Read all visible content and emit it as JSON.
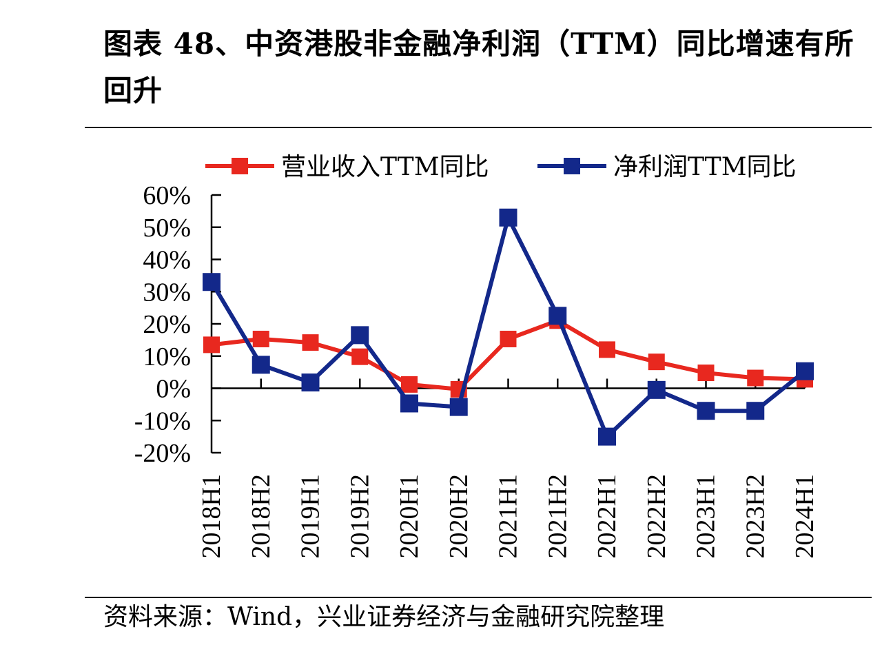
{
  "figure": {
    "title": "图表 48、中资港股非金融净利润（TTM）同比增速有所回升",
    "source": "资料来源：Wind，兴业证券经济与金融研究院整理"
  },
  "chart_data": {
    "type": "line",
    "categories": [
      "2018H1",
      "2018H2",
      "2019H1",
      "2019H2",
      "2020H1",
      "2020H2",
      "2021H1",
      "2021H2",
      "2022H1",
      "2022H2",
      "2023H1",
      "2023H2",
      "2024H1"
    ],
    "series": [
      {
        "name": "营业收入TTM同比",
        "color": "#e8281f",
        "values": [
          13.5,
          15.3,
          14.2,
          9.8,
          1.2,
          -0.3,
          15.3,
          21.0,
          12.0,
          8.2,
          4.8,
          3.2,
          2.8
        ]
      },
      {
        "name": "净利润TTM同比",
        "color": "#13288a",
        "values": [
          33.0,
          7.3,
          1.8,
          16.5,
          -4.7,
          -5.8,
          53.0,
          22.5,
          -15.0,
          -0.5,
          -7.0,
          -7.0,
          5.3
        ]
      }
    ],
    "ylim": [
      -20,
      60
    ],
    "yticks": [
      -20,
      -10,
      0,
      10,
      20,
      30,
      40,
      50,
      60
    ],
    "ytick_labels": [
      "-20%",
      "-10%",
      "0%",
      "10%",
      "20%",
      "30%",
      "40%",
      "50%",
      "60%"
    ],
    "xlabel": "",
    "ylabel": "",
    "grid": false,
    "legend_position": "top",
    "marker": "square"
  }
}
